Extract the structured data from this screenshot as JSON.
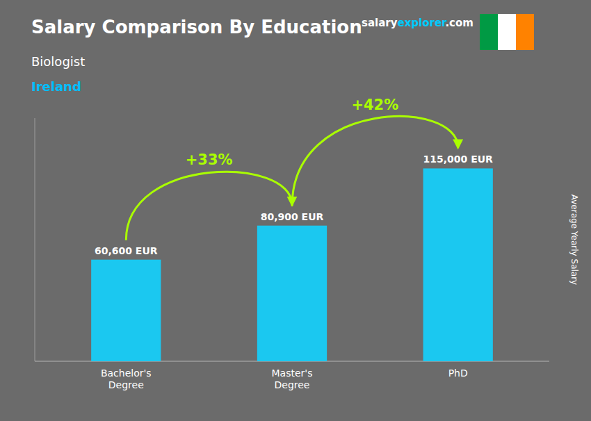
{
  "chart_data": {
    "type": "bar",
    "title": "Salary Comparison By Education",
    "subtitle": [
      "Biologist",
      "Ireland"
    ],
    "y_label": "Average Yearly Salary",
    "categories": [
      "Bachelor's\nDegree",
      "Master's\nDegree",
      "PhD"
    ],
    "values": [
      60600,
      80900,
      115000
    ],
    "value_labels": [
      "60,600 EUR",
      "80,900 EUR",
      "115,000 EUR"
    ],
    "data_labels": true,
    "color": "#1BC8F0",
    "ylim": [
      0,
      145000
    ],
    "tick_labels": "x",
    "grid": false,
    "annotations": [
      {
        "text": "+33%",
        "color": "#AAFF00"
      },
      {
        "text": "+42%",
        "color": "#AAFF00"
      }
    ],
    "website": [
      {
        "text": "salary",
        "color": "#FFFFFF"
      },
      {
        "text": "explorer",
        "color": "#00CCFF"
      },
      {
        "text": ".com",
        "color": "#FFFFFF"
      }
    ],
    "flag_colors": [
      "#009A44",
      "#FFFFFF",
      "#FF8200"
    ],
    "background_color": "#6B6B6B"
  }
}
